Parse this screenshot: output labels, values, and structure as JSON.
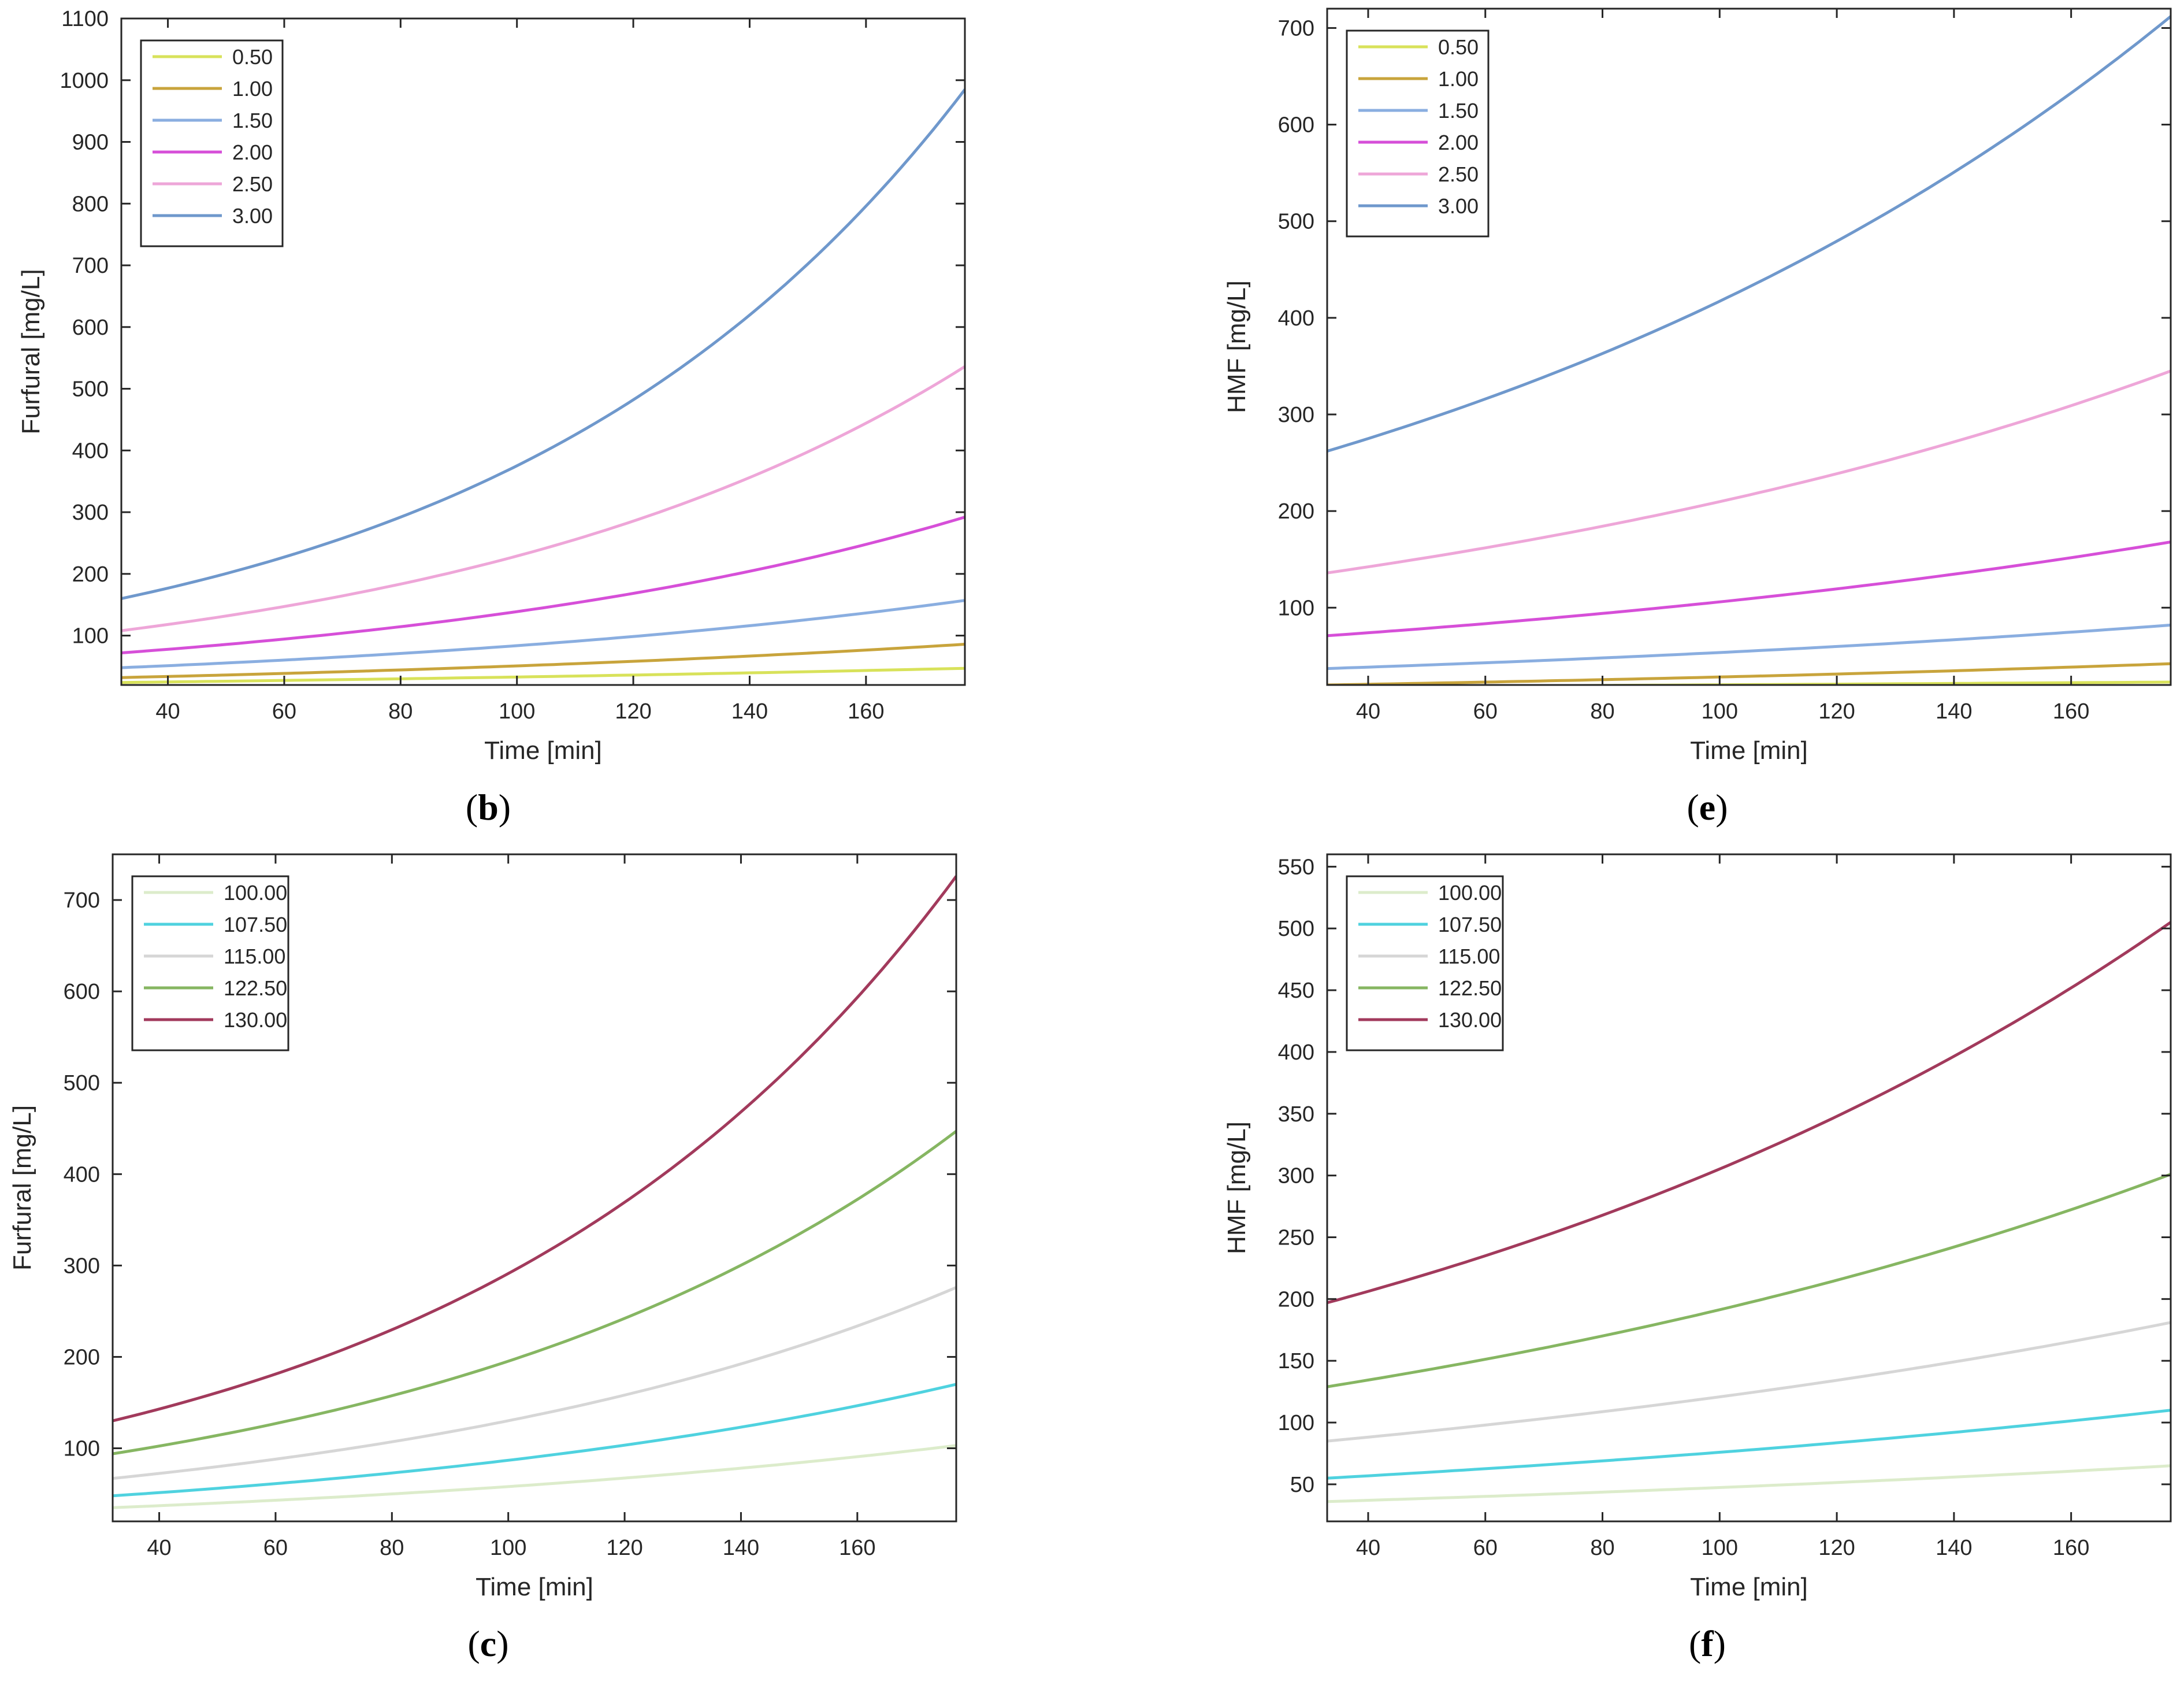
{
  "chart_data": [
    {
      "id": "b",
      "type": "line",
      "caption": "b",
      "xlabel": "Time [min]",
      "ylabel": "Furfural [mg/L]",
      "xlim": [
        32,
        177
      ],
      "ylim": [
        20,
        1100
      ],
      "xticks": [
        40,
        60,
        80,
        100,
        120,
        140,
        160
      ],
      "yticks": [
        100,
        200,
        300,
        400,
        500,
        600,
        700,
        800,
        900,
        1000,
        1100
      ],
      "legend_position": "top-left",
      "series": [
        {
          "name": "0.50",
          "color": "#d8e25a",
          "start": 24,
          "end": 47
        },
        {
          "name": "1.00",
          "color": "#c8a43c",
          "start": 32,
          "end": 86
        },
        {
          "name": "1.50",
          "color": "#8aaee0",
          "start": 48,
          "end": 157
        },
        {
          "name": "2.00",
          "color": "#d64fd8",
          "start": 72,
          "end": 292
        },
        {
          "name": "2.50",
          "color": "#eea6d8",
          "start": 108,
          "end": 536
        },
        {
          "name": "3.00",
          "color": "#6f98cc",
          "start": 160,
          "end": 985
        }
      ]
    },
    {
      "id": "e",
      "type": "line",
      "caption": "e",
      "xlabel": "Time [min]",
      "ylabel": "HMF [mg/L]",
      "xlim": [
        33,
        177
      ],
      "ylim": [
        20,
        720
      ],
      "xticks": [
        40,
        60,
        80,
        100,
        120,
        140,
        160
      ],
      "yticks": [
        100,
        200,
        300,
        400,
        500,
        600,
        700
      ],
      "legend_position": "top-left",
      "series": [
        {
          "name": "0.50",
          "color": "#d8e25a",
          "start": 18,
          "end": 23
        },
        {
          "name": "1.00",
          "color": "#c8a43c",
          "start": 20,
          "end": 42
        },
        {
          "name": "1.50",
          "color": "#8aaee0",
          "start": 37,
          "end": 82
        },
        {
          "name": "2.00",
          "color": "#d64fd8",
          "start": 71,
          "end": 168
        },
        {
          "name": "2.50",
          "color": "#eea6d8",
          "start": 136,
          "end": 345
        },
        {
          "name": "3.00",
          "color": "#6f98cc",
          "start": 262,
          "end": 712
        }
      ]
    },
    {
      "id": "c",
      "type": "line",
      "caption": "c",
      "xlabel": "Time [min]",
      "ylabel": "Furfural [mg/L]",
      "xlim": [
        32,
        177
      ],
      "ylim": [
        20,
        750
      ],
      "xticks": [
        40,
        60,
        80,
        100,
        120,
        140,
        160
      ],
      "yticks": [
        100,
        200,
        300,
        400,
        500,
        600,
        700
      ],
      "legend_position": "top-left",
      "series": [
        {
          "name": "100.00",
          "color": "#dceccb",
          "start": 35,
          "end": 103
        },
        {
          "name": "107.50",
          "color": "#4fd2df",
          "start": 48,
          "end": 170
        },
        {
          "name": "115.00",
          "color": "#d6d6d6",
          "start": 67,
          "end": 276
        },
        {
          "name": "122.50",
          "color": "#86b662",
          "start": 94,
          "end": 447
        },
        {
          "name": "130.00",
          "color": "#a23a5c",
          "start": 130,
          "end": 726
        }
      ]
    },
    {
      "id": "f",
      "type": "line",
      "caption": "f",
      "xlabel": "Time [min]",
      "ylabel": "HMF [mg/L]",
      "xlim": [
        33,
        177
      ],
      "ylim": [
        20,
        560
      ],
      "xticks": [
        40,
        60,
        80,
        100,
        120,
        140,
        160
      ],
      "yticks": [
        50,
        100,
        150,
        200,
        250,
        300,
        350,
        400,
        450,
        500,
        550
      ],
      "legend_position": "top-left",
      "series": [
        {
          "name": "100.00",
          "color": "#dceccb",
          "start": 36,
          "end": 65
        },
        {
          "name": "107.50",
          "color": "#4fd2df",
          "start": 55,
          "end": 110
        },
        {
          "name": "115.00",
          "color": "#d6d6d6",
          "start": 85,
          "end": 181
        },
        {
          "name": "122.50",
          "color": "#86b662",
          "start": 129,
          "end": 301
        },
        {
          "name": "130.00",
          "color": "#a23a5c",
          "start": 197,
          "end": 505
        }
      ]
    }
  ]
}
